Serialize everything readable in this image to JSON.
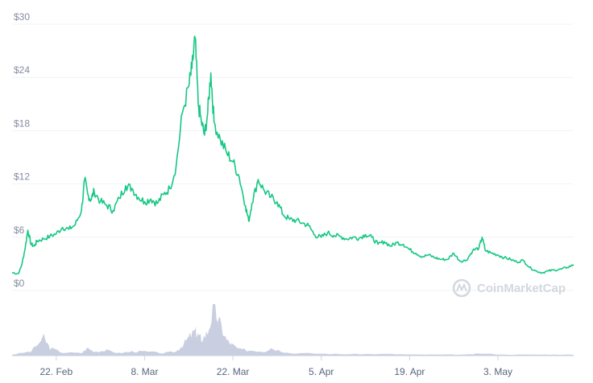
{
  "brand": {
    "watermark": "CoinMarketCap",
    "price_color": "#16c784",
    "volume_color": "#c9cfe0",
    "watermark_color": "#d3d8e0"
  },
  "chart_data": {
    "type": "line",
    "title": "",
    "xlabel": "",
    "ylabel": "",
    "y_currency_prefix": "$",
    "ylim": [
      0,
      30
    ],
    "yticks": [
      0,
      6,
      12,
      18,
      24,
      30
    ],
    "ytick_labels": [
      "$0",
      "$6",
      "$12",
      "$18",
      "$24",
      "$30"
    ],
    "x_range_days": [
      0,
      89
    ],
    "xticks": [
      {
        "label": "22. Feb",
        "day": 7
      },
      {
        "label": "8. Mar",
        "day": 21
      },
      {
        "label": "22. Mar",
        "day": 35
      },
      {
        "label": "5. Apr",
        "day": 49
      },
      {
        "label": "19. Apr",
        "day": 63
      },
      {
        "label": "3. May",
        "day": 77
      }
    ],
    "grid": true,
    "series": [
      {
        "kind": "price",
        "points": [
          [
            0,
            2.0
          ],
          [
            1,
            1.9
          ],
          [
            1.5,
            2.8
          ],
          [
            2,
            4.5
          ],
          [
            2.5,
            6.8
          ],
          [
            3,
            5.2
          ],
          [
            3.5,
            5.0
          ],
          [
            4,
            5.6
          ],
          [
            5,
            5.8
          ],
          [
            6,
            6.1
          ],
          [
            7,
            6.4
          ],
          [
            8,
            7.1
          ],
          [
            9,
            6.9
          ],
          [
            10,
            7.4
          ],
          [
            11,
            9.0
          ],
          [
            11.5,
            12.5
          ],
          [
            12,
            10.8
          ],
          [
            12.5,
            10.2
          ],
          [
            13,
            11.2
          ],
          [
            14,
            10.0
          ],
          [
            15,
            9.6
          ],
          [
            16,
            9.0
          ],
          [
            17,
            10.4
          ],
          [
            18,
            11.8
          ],
          [
            19,
            11.5
          ],
          [
            20,
            10.5
          ],
          [
            21,
            10.0
          ],
          [
            22,
            10.3
          ],
          [
            23,
            9.8
          ],
          [
            24,
            10.8
          ],
          [
            25,
            11.5
          ],
          [
            26,
            14.0
          ],
          [
            27,
            20.0
          ],
          [
            28,
            23.0
          ],
          [
            28.5,
            25.0
          ],
          [
            29,
            28.5
          ],
          [
            29.5,
            21.0
          ],
          [
            30,
            19.0
          ],
          [
            30.5,
            17.5
          ],
          [
            31,
            20.0
          ],
          [
            31.5,
            24.5
          ],
          [
            32,
            19.0
          ],
          [
            33,
            17.0
          ],
          [
            34,
            15.5
          ],
          [
            35,
            14.5
          ],
          [
            36,
            12.8
          ],
          [
            37,
            9.5
          ],
          [
            37.5,
            7.8
          ],
          [
            38,
            9.8
          ],
          [
            39,
            12.5
          ],
          [
            40,
            11.2
          ],
          [
            41,
            10.5
          ],
          [
            42,
            10.0
          ],
          [
            43,
            8.5
          ],
          [
            44,
            8.0
          ],
          [
            45,
            7.9
          ],
          [
            46,
            7.6
          ],
          [
            47,
            7.3
          ],
          [
            48,
            6.2
          ],
          [
            49,
            6.0
          ],
          [
            50,
            6.5
          ],
          [
            51,
            6.2
          ],
          [
            52,
            6.1
          ],
          [
            53,
            5.8
          ],
          [
            54,
            6.0
          ],
          [
            55,
            5.9
          ],
          [
            56,
            6.3
          ],
          [
            57,
            6.0
          ],
          [
            58,
            5.2
          ],
          [
            59,
            5.5
          ],
          [
            60,
            5.0
          ],
          [
            61,
            5.4
          ],
          [
            62,
            5.2
          ],
          [
            63,
            4.6
          ],
          [
            64,
            4.2
          ],
          [
            65,
            3.8
          ],
          [
            66,
            4.0
          ],
          [
            67,
            3.7
          ],
          [
            68,
            3.5
          ],
          [
            69,
            3.5
          ],
          [
            70,
            4.2
          ],
          [
            71,
            3.3
          ],
          [
            72,
            3.4
          ],
          [
            73,
            4.5
          ],
          [
            74,
            4.8
          ],
          [
            74.5,
            6.0
          ],
          [
            75,
            4.5
          ],
          [
            76,
            4.2
          ],
          [
            77,
            4.0
          ],
          [
            78,
            3.7
          ],
          [
            79,
            3.5
          ],
          [
            80,
            3.2
          ],
          [
            81,
            3.4
          ],
          [
            82,
            2.6
          ],
          [
            83,
            2.2
          ],
          [
            84,
            2.0
          ],
          [
            85,
            2.2
          ],
          [
            86,
            2.3
          ],
          [
            87,
            2.4
          ],
          [
            88,
            2.6
          ],
          [
            89,
            2.9
          ]
        ]
      },
      {
        "kind": "volume",
        "relative_scale": [
          0,
          1
        ],
        "points": [
          [
            0,
            0.02
          ],
          [
            3,
            0.08
          ],
          [
            5,
            0.35
          ],
          [
            6,
            0.15
          ],
          [
            8,
            0.06
          ],
          [
            11,
            0.05
          ],
          [
            12,
            0.15
          ],
          [
            13,
            0.08
          ],
          [
            15,
            0.1
          ],
          [
            17,
            0.05
          ],
          [
            19,
            0.08
          ],
          [
            21,
            0.08
          ],
          [
            24,
            0.05
          ],
          [
            26,
            0.08
          ],
          [
            27,
            0.2
          ],
          [
            28,
            0.35
          ],
          [
            29,
            0.48
          ],
          [
            29.5,
            0.4
          ],
          [
            30,
            0.32
          ],
          [
            31,
            0.45
          ],
          [
            32,
            0.95
          ],
          [
            33,
            0.6
          ],
          [
            34,
            0.3
          ],
          [
            35,
            0.2
          ],
          [
            36,
            0.12
          ],
          [
            38,
            0.1
          ],
          [
            40,
            0.08
          ],
          [
            41,
            0.15
          ],
          [
            43,
            0.08
          ],
          [
            44,
            0.05
          ],
          [
            48,
            0.04
          ],
          [
            52,
            0.03
          ],
          [
            56,
            0.03
          ],
          [
            60,
            0.03
          ],
          [
            64,
            0.02
          ],
          [
            68,
            0.02
          ],
          [
            72,
            0.02
          ],
          [
            74.5,
            0.04
          ],
          [
            78,
            0.02
          ],
          [
            82,
            0.02
          ],
          [
            86,
            0.02
          ],
          [
            89,
            0.02
          ]
        ]
      }
    ]
  }
}
